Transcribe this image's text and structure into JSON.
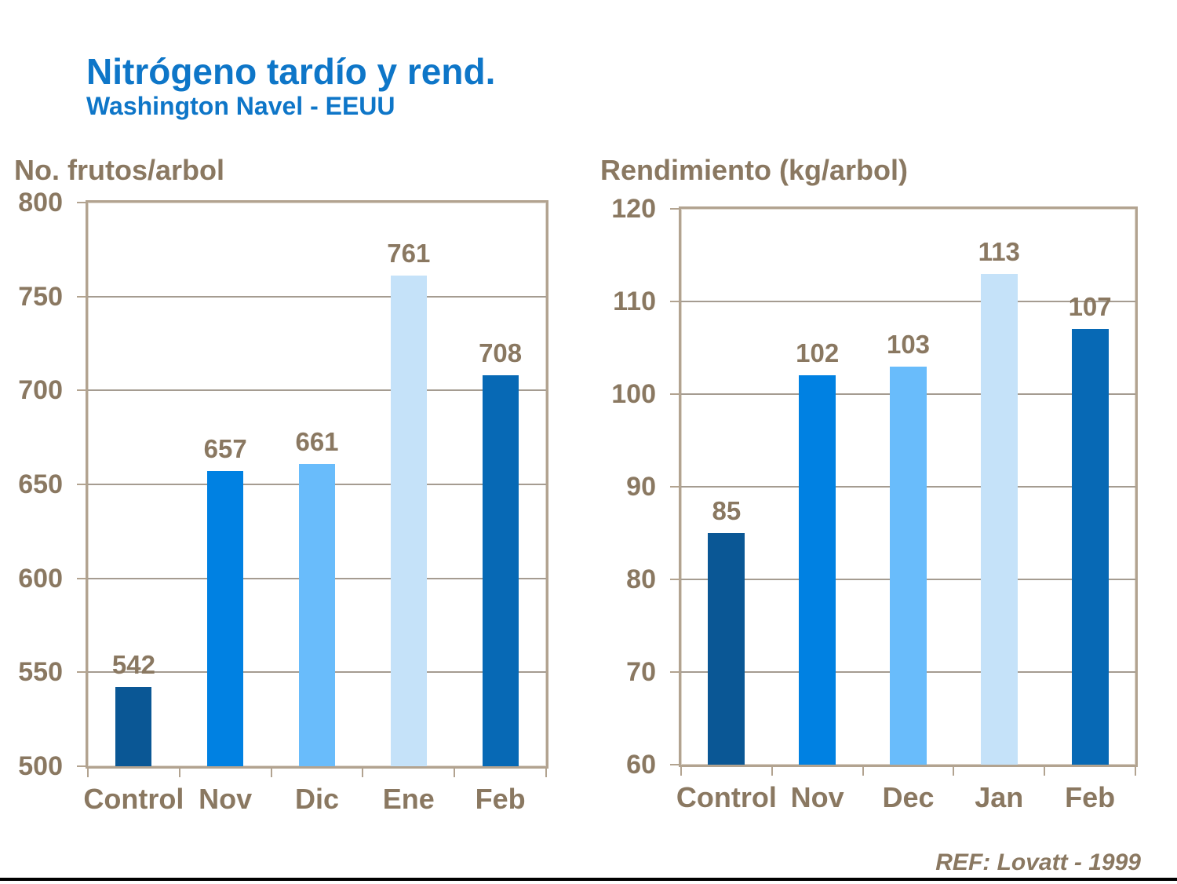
{
  "page": {
    "title": "Nitrógeno tardío y rend.",
    "subtitle": "Washington Navel - EEUU",
    "ref": "REF: Lovatt - 1999"
  },
  "colors": {
    "title_blue": "#0e76c8",
    "text_brown": "#8a7861",
    "frame_tan": "#b2a390",
    "gridline_gray": "#a59c91",
    "bottom_line": "#000000"
  },
  "chart_data": [
    {
      "type": "bar",
      "title": "No. frutos/arbol",
      "categories": [
        "Control",
        "Nov",
        "Dic",
        "Ene",
        "Feb"
      ],
      "values": [
        542,
        657,
        661,
        761,
        708
      ],
      "bar_colors": [
        "#0a5795",
        "#0081e2",
        "#69bcfb",
        "#c5e2f9",
        "#0769b5"
      ],
      "ylim": [
        500,
        800
      ],
      "ytick_step": 50,
      "grid": true,
      "value_labels": true,
      "legend": false
    },
    {
      "type": "bar",
      "title": "Rendimiento (kg/arbol)",
      "categories": [
        "Control",
        "Nov",
        "Dec",
        "Jan",
        "Feb"
      ],
      "values": [
        85,
        102,
        103,
        113,
        107
      ],
      "bar_colors": [
        "#0a5795",
        "#0081e2",
        "#69bcfb",
        "#c5e2f9",
        "#0769b5"
      ],
      "ylim": [
        60,
        120
      ],
      "ytick_step": 10,
      "grid": true,
      "value_labels": true,
      "legend": false
    }
  ]
}
